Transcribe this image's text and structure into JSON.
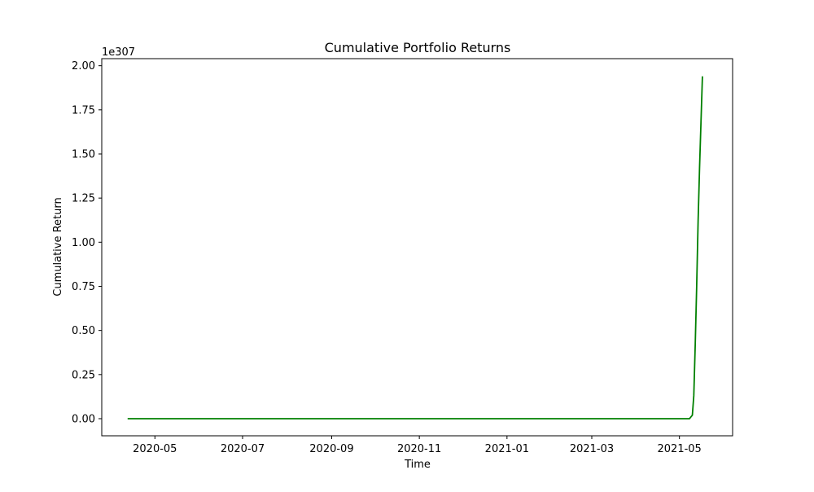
{
  "chart_data": {
    "type": "line",
    "title": "Cumulative Portfolio Returns",
    "xlabel": "Time",
    "ylabel": "Cumulative Return",
    "y_offset_label": "1e307",
    "y_scale_factor": 1e+307,
    "x_ticks": [
      "2020-05",
      "2020-07",
      "2020-09",
      "2020-11",
      "2021-01",
      "2021-03",
      "2021-05"
    ],
    "y_ticks": [
      "0.00",
      "0.25",
      "0.50",
      "0.75",
      "1.00",
      "1.25",
      "1.50",
      "1.75",
      "2.00"
    ],
    "xlim": [
      "2020-03-25",
      "2021-06-07"
    ],
    "ylim": [
      -0.097,
      2.04
    ],
    "grid": false,
    "series": [
      {
        "color": "#008000",
        "x": [
          "2020-04-12",
          "2020-06-01",
          "2020-08-01",
          "2020-10-01",
          "2020-12-01",
          "2021-02-01",
          "2021-04-01",
          "2021-05-01",
          "2021-05-08",
          "2021-05-10",
          "2021-05-11",
          "2021-05-12",
          "2021-05-13",
          "2021-05-14",
          "2021-05-15",
          "2021-05-16",
          "2021-05-17"
        ],
        "y": [
          0,
          0,
          0,
          0,
          0,
          0,
          0,
          0,
          0,
          0.02,
          0.13,
          0.42,
          0.75,
          1.12,
          1.42,
          1.68,
          1.94
        ]
      }
    ]
  }
}
